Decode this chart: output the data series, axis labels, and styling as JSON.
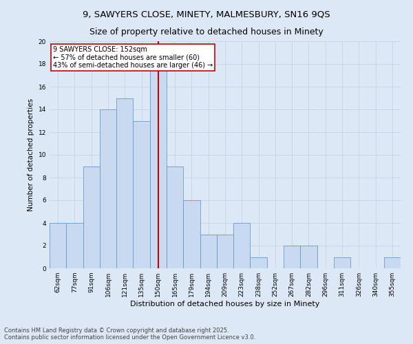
{
  "title1": "9, SAWYERS CLOSE, MINETY, MALMESBURY, SN16 9QS",
  "title2": "Size of property relative to detached houses in Minety",
  "xlabel": "Distribution of detached houses by size in Minety",
  "ylabel": "Number of detached properties",
  "bar_labels": [
    "62sqm",
    "77sqm",
    "91sqm",
    "106sqm",
    "121sqm",
    "135sqm",
    "150sqm",
    "165sqm",
    "179sqm",
    "194sqm",
    "209sqm",
    "223sqm",
    "238sqm",
    "252sqm",
    "267sqm",
    "282sqm",
    "296sqm",
    "311sqm",
    "326sqm",
    "340sqm",
    "355sqm"
  ],
  "bar_values": [
    4,
    4,
    9,
    14,
    15,
    13,
    19,
    9,
    6,
    3,
    3,
    4,
    1,
    0,
    2,
    2,
    0,
    1,
    0,
    0,
    1
  ],
  "bar_color": "#c9d9f0",
  "bar_edge_color": "#6699cc",
  "reference_line_idx": 6,
  "reference_label": "9 SAWYERS CLOSE: 152sqm",
  "annotation_line1": "← 57% of detached houses are smaller (60)",
  "annotation_line2": "43% of semi-detached houses are larger (46) →",
  "annotation_box_color": "#ffffff",
  "annotation_box_edge": "#cc0000",
  "vline_color": "#cc0000",
  "grid_color": "#c0d0e0",
  "background_color": "#dce8f5",
  "ylim": [
    0,
    20
  ],
  "yticks": [
    0,
    2,
    4,
    6,
    8,
    10,
    12,
    14,
    16,
    18,
    20
  ],
  "footer1": "Contains HM Land Registry data © Crown copyright and database right 2025.",
  "footer2": "Contains public sector information licensed under the Open Government Licence v3.0.",
  "title_fontsize": 9.5,
  "subtitle_fontsize": 9,
  "tick_fontsize": 6.5,
  "ylabel_fontsize": 7.5,
  "xlabel_fontsize": 8,
  "footer_fontsize": 6,
  "annot_fontsize": 7
}
